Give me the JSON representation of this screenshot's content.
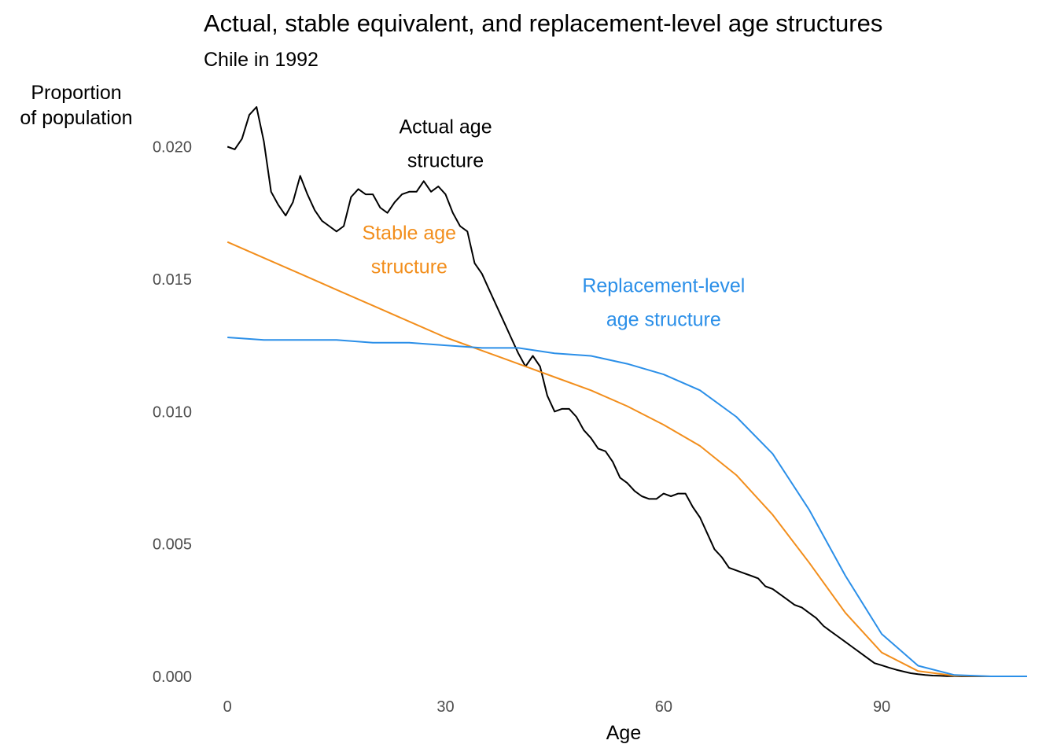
{
  "chart_data": {
    "type": "line",
    "title": "Actual, stable equivalent, and replacement-level age structures",
    "subtitle": "Chile in 1992",
    "xlabel": "Age",
    "ylabel_lines": [
      "Proportion",
      "of population"
    ],
    "xlim": [
      -1,
      110
    ],
    "ylim": [
      0,
      0.0215
    ],
    "x_ticks": [
      0,
      30,
      60,
      90
    ],
    "y_ticks": [
      0,
      0.005,
      0.01,
      0.015,
      0.02
    ],
    "x_tick_labels": [
      "0",
      "30",
      "60",
      "90"
    ],
    "y_tick_labels": [
      "0.000",
      "0.005",
      "0.010",
      "0.015",
      "0.020"
    ],
    "grid": false,
    "legend": "none",
    "series": [
      {
        "key": "actual",
        "color": "#000000",
        "label_lines": [
          "Actual age",
          "structure"
        ],
        "label_pos": [
          30,
          0.0205
        ],
        "x": [
          0,
          1,
          2,
          3,
          4,
          5,
          6,
          7,
          8,
          9,
          10,
          11,
          12,
          13,
          14,
          15,
          16,
          17,
          18,
          19,
          20,
          21,
          22,
          23,
          24,
          25,
          26,
          27,
          28,
          29,
          30,
          31,
          32,
          33,
          34,
          35,
          36,
          37,
          38,
          39,
          40,
          41,
          42,
          43,
          44,
          45,
          46,
          47,
          48,
          49,
          50,
          51,
          52,
          53,
          54,
          55,
          56,
          57,
          58,
          59,
          60,
          61,
          62,
          63,
          64,
          65,
          66,
          67,
          68,
          69,
          70,
          71,
          72,
          73,
          74,
          75,
          76,
          77,
          78,
          79,
          80,
          81,
          82,
          83,
          84,
          85,
          86,
          87,
          88,
          89,
          90,
          91,
          92,
          93,
          94,
          95,
          96,
          97,
          98,
          99,
          100,
          101,
          102,
          103,
          104,
          105,
          106,
          107,
          108,
          109,
          110
        ],
        "values": [
          0.02,
          0.0199,
          0.0203,
          0.0212,
          0.0215,
          0.0202,
          0.0183,
          0.0178,
          0.0174,
          0.0179,
          0.0189,
          0.0182,
          0.0176,
          0.0172,
          0.017,
          0.0168,
          0.017,
          0.0181,
          0.0184,
          0.0182,
          0.0182,
          0.0177,
          0.0175,
          0.0179,
          0.0182,
          0.0183,
          0.0183,
          0.0187,
          0.0183,
          0.0185,
          0.0182,
          0.0175,
          0.017,
          0.0168,
          0.0156,
          0.0152,
          0.0146,
          0.014,
          0.0134,
          0.0128,
          0.0122,
          0.0117,
          0.0121,
          0.0117,
          0.0106,
          0.01,
          0.0101,
          0.0101,
          0.0098,
          0.0093,
          0.009,
          0.0086,
          0.0085,
          0.0081,
          0.0075,
          0.0073,
          0.007,
          0.0068,
          0.0067,
          0.0067,
          0.0069,
          0.0068,
          0.0069,
          0.0069,
          0.0064,
          0.006,
          0.0054,
          0.0048,
          0.0045,
          0.0041,
          0.004,
          0.0039,
          0.0038,
          0.0037,
          0.0034,
          0.0033,
          0.0031,
          0.0029,
          0.0027,
          0.0026,
          0.0024,
          0.0022,
          0.0019,
          0.0017,
          0.0015,
          0.0013,
          0.0011,
          0.0009,
          0.0007,
          0.0005,
          0.00042,
          0.00033,
          0.00025,
          0.00018,
          0.00012,
          8e-05,
          5e-05,
          3e-05,
          2e-05,
          1e-05,
          1e-05,
          0,
          0,
          0,
          0,
          0,
          0,
          0,
          0,
          0,
          0
        ]
      },
      {
        "key": "stable",
        "color": "#f28e1c",
        "label_lines": [
          "Stable age",
          "structure"
        ],
        "label_pos": [
          25,
          0.0165
        ],
        "x": [
          0,
          5,
          10,
          15,
          20,
          25,
          30,
          35,
          40,
          45,
          50,
          55,
          60,
          65,
          70,
          75,
          80,
          85,
          90,
          95,
          100,
          105,
          110
        ],
        "values": [
          0.0164,
          0.0158,
          0.0152,
          0.0146,
          0.014,
          0.0134,
          0.0128,
          0.0123,
          0.0118,
          0.0113,
          0.0108,
          0.0102,
          0.0095,
          0.0087,
          0.0076,
          0.0061,
          0.0043,
          0.0024,
          0.0009,
          0.0002,
          2e-05,
          0,
          0
        ]
      },
      {
        "key": "replacement",
        "color": "#2b8fe8",
        "label_lines": [
          "Replacement-level",
          "age structure"
        ],
        "label_pos": [
          60,
          0.0145
        ],
        "x": [
          0,
          5,
          10,
          15,
          20,
          25,
          30,
          35,
          40,
          45,
          50,
          55,
          60,
          65,
          70,
          75,
          80,
          85,
          90,
          95,
          100,
          105,
          110
        ],
        "values": [
          0.0128,
          0.0127,
          0.0127,
          0.0127,
          0.0126,
          0.0126,
          0.0125,
          0.0124,
          0.0124,
          0.0122,
          0.0121,
          0.0118,
          0.0114,
          0.0108,
          0.0098,
          0.0084,
          0.0063,
          0.0038,
          0.0016,
          0.0004,
          5e-05,
          0,
          0
        ]
      }
    ]
  }
}
